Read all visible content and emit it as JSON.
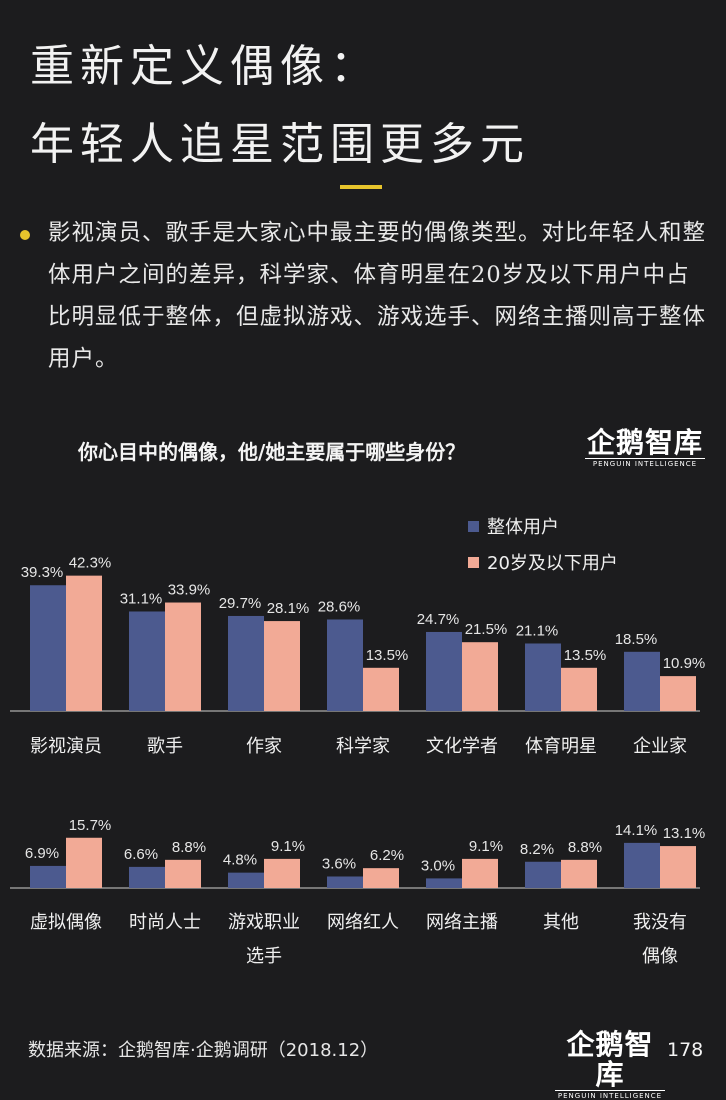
{
  "title": {
    "line1": "重新定义偶像：",
    "line2": "年轻人追星范围更多元"
  },
  "intro": "影视演员、歌手是大家心中最主要的偶像类型。对比年轻人和整体用户之间的差异，科学家、体育明星在20岁及以下用户中占比明显低于整体，但虚拟游戏、游戏选手、网络主播则高于整体用户。",
  "question": "你心目中的偶像，他/她主要属于哪些身份？",
  "logo": {
    "cn": "企鹅智库",
    "en": "PENGUIN INTELLIGENCE"
  },
  "footer": {
    "source": "数据来源：企鹅智库·企鹅调研（2018.12）",
    "page": "178"
  },
  "colors": {
    "overall": "#4c5a8f",
    "young": "#f2aa96",
    "accent": "#e7c42c",
    "background": "#1c1c1e"
  },
  "chart_data": [
    {
      "type": "bar",
      "categories": [
        "影视演员",
        "歌手",
        "作家",
        "科学家",
        "文化学者",
        "体育明星",
        "企业家"
      ],
      "series": [
        {
          "name": "整体用户",
          "values": [
            39.3,
            31.1,
            29.7,
            28.6,
            24.7,
            21.1,
            18.5
          ],
          "labels": [
            "39.3%",
            "31.1%",
            "29.7%",
            "28.6%",
            "24.7%",
            "21.1%",
            "18.5%"
          ]
        },
        {
          "name": "20岁及以下用户",
          "values": [
            42.3,
            33.9,
            28.1,
            13.5,
            21.5,
            13.5,
            10.9
          ],
          "labels": [
            "42.3%",
            "33.9%",
            "28.1%",
            "13.5%",
            "21.5%",
            "13.5%",
            "10.9%"
          ]
        }
      ],
      "legend": "top-right"
    },
    {
      "type": "bar",
      "categories": [
        "虚拟偶像",
        "时尚人士",
        "游戏职业|选手",
        "网络红人",
        "网络主播",
        "其他",
        "我没有|偶像"
      ],
      "series": [
        {
          "name": "整体用户",
          "values": [
            6.9,
            6.6,
            4.8,
            3.6,
            3.0,
            8.2,
            14.1
          ],
          "labels": [
            "6.9%",
            "6.6%",
            "4.8%",
            "3.6%",
            "3.0%",
            "8.2%",
            "14.1%"
          ]
        },
        {
          "name": "20岁及以下用户",
          "values": [
            15.7,
            8.8,
            9.1,
            6.2,
            9.1,
            8.8,
            13.1
          ],
          "labels": [
            "15.7%",
            "8.8%",
            "9.1%",
            "6.2%",
            "9.1%",
            "8.8%",
            "13.1%"
          ]
        }
      ]
    }
  ]
}
